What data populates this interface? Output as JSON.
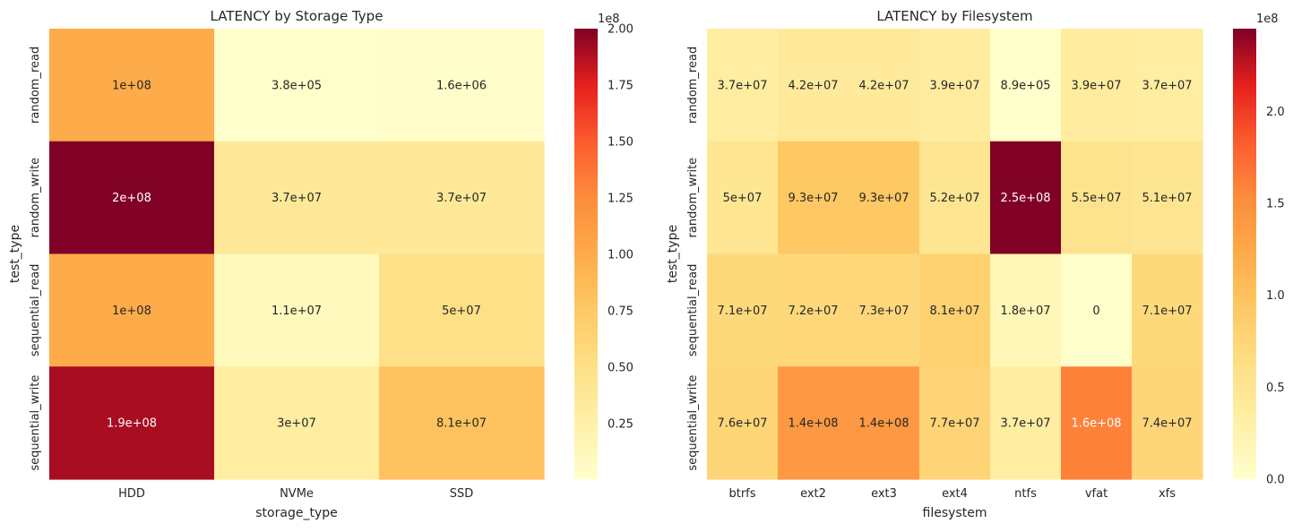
{
  "chart_data": [
    {
      "type": "heatmap",
      "title": "LATENCY by Storage Type",
      "xlabel": "storage_type",
      "ylabel": "test_type",
      "categories_x": [
        "HDD",
        "NVMe",
        "SSD"
      ],
      "categories_y": [
        "random_read",
        "random_write",
        "sequential_read",
        "sequential_write"
      ],
      "values": [
        [
          100000000,
          380000,
          1600000
        ],
        [
          200000000,
          37000000,
          37000000
        ],
        [
          100000000,
          11000000,
          50000000
        ],
        [
          190000000,
          30000000,
          81000000
        ]
      ],
      "annotations": [
        [
          "1e+08",
          "3.8e+05",
          "1.6e+06"
        ],
        [
          "2e+08",
          "3.7e+07",
          "3.7e+07"
        ],
        [
          "1e+08",
          "1.1e+07",
          "5e+07"
        ],
        [
          "1.9e+08",
          "3e+07",
          "8.1e+07"
        ]
      ],
      "colorbar": {
        "range": [
          380000,
          200000000
        ],
        "ticks": [
          25000000,
          50000000,
          75000000,
          100000000,
          125000000,
          150000000,
          175000000,
          200000000
        ],
        "tick_labels": [
          "0.25",
          "0.50",
          "0.75",
          "1.00",
          "1.25",
          "1.50",
          "1.75",
          "2.00"
        ],
        "offset_label": "1e8"
      },
      "colormap": "YlOrRd"
    },
    {
      "type": "heatmap",
      "title": "LATENCY by Filesystem",
      "xlabel": "filesystem",
      "ylabel": "test_type",
      "categories_x": [
        "btrfs",
        "ext2",
        "ext3",
        "ext4",
        "ntfs",
        "vfat",
        "xfs"
      ],
      "categories_y": [
        "random_read",
        "random_write",
        "sequential_read",
        "sequential_write"
      ],
      "values": [
        [
          37000000,
          42000000,
          42000000,
          39000000,
          890000,
          39000000,
          37000000
        ],
        [
          50000000,
          93000000,
          93000000,
          52000000,
          250000000,
          55000000,
          51000000
        ],
        [
          71000000,
          72000000,
          73000000,
          81000000,
          18000000,
          0,
          71000000
        ],
        [
          76000000,
          140000000,
          140000000,
          77000000,
          37000000,
          160000000,
          74000000
        ]
      ],
      "annotations": [
        [
          "3.7e+07",
          "4.2e+07",
          "4.2e+07",
          "3.9e+07",
          "8.9e+05",
          "3.9e+07",
          "3.7e+07"
        ],
        [
          "5e+07",
          "9.3e+07",
          "9.3e+07",
          "5.2e+07",
          "2.5e+08",
          "5.5e+07",
          "5.1e+07"
        ],
        [
          "7.1e+07",
          "7.2e+07",
          "7.3e+07",
          "8.1e+07",
          "1.8e+07",
          "0",
          "7.1e+07"
        ],
        [
          "7.6e+07",
          "1.4e+08",
          "1.4e+08",
          "7.7e+07",
          "3.7e+07",
          "1.6e+08",
          "7.4e+07"
        ]
      ],
      "colorbar": {
        "range": [
          0,
          245000000
        ],
        "ticks": [
          0,
          50000000,
          100000000,
          150000000,
          200000000
        ],
        "tick_labels": [
          "0.0",
          "0.5",
          "1.0",
          "1.5",
          "2.0"
        ],
        "offset_label": "1e8"
      },
      "colormap": "YlOrRd"
    }
  ]
}
